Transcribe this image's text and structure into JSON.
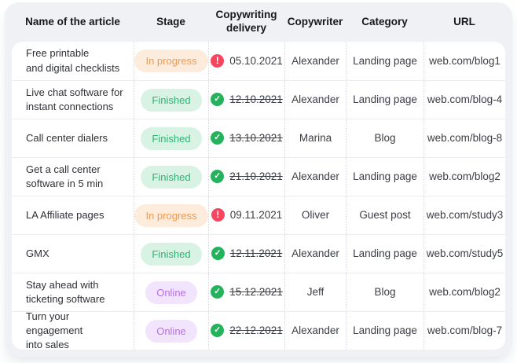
{
  "table": {
    "columns": [
      "Name of the article",
      "Stage",
      "Copywriting delivery",
      "Copywriter",
      "Category",
      "URL"
    ],
    "stage_colors": {
      "in-progress": {
        "bg": "#fdebdc",
        "text": "#f19a54"
      },
      "finished": {
        "bg": "#d8f3e3",
        "text": "#2db473"
      },
      "online": {
        "bg": "#f2e4fd",
        "text": "#b570e7"
      }
    },
    "status_colors": {
      "overdue_icon": "#f5455f",
      "done_icon": "#24b35c"
    },
    "icons": {
      "overdue_glyph": "!",
      "done_glyph": "✓"
    },
    "rows": [
      {
        "name": "Free printable\nand digital checklists",
        "stage": "In progress",
        "stage_type": "in-progress",
        "date": "05.10.2021",
        "status": "overdue",
        "copywriter": "Alexander",
        "category": "Landing page",
        "url": "web.com/blog1"
      },
      {
        "name": "Live chat software for\ninstant connections",
        "stage": "Finished",
        "stage_type": "finished",
        "date": "12.10.2021",
        "status": "done",
        "copywriter": "Alexander",
        "category": "Landing page",
        "url": "web.com/blog-4"
      },
      {
        "name": "Call center dialers",
        "stage": "Finished",
        "stage_type": "finished",
        "date": "13.10.2021",
        "status": "done",
        "copywriter": "Marina",
        "category": "Blog",
        "url": "web.com/blog-8"
      },
      {
        "name": "Get a call center\nsoftware in 5 min",
        "stage": "Finished",
        "stage_type": "finished",
        "date": "21.10.2021",
        "status": "done",
        "copywriter": "Alexander",
        "category": "Landing page",
        "url": "web.com/blog2"
      },
      {
        "name": "LA Affiliate pages",
        "stage": "In progress",
        "stage_type": "in-progress",
        "date": "09.11.2021",
        "status": "overdue",
        "copywriter": "Oliver",
        "category": "Guest post",
        "url": "web.com/study3"
      },
      {
        "name": "GMX",
        "stage": "Finished",
        "stage_type": "finished",
        "date": "12.11.2021",
        "status": "done",
        "copywriter": "Alexander",
        "category": "Landing page",
        "url": "web.com/study5"
      },
      {
        "name": "Stay ahead with\nticketing software",
        "stage": "Online",
        "stage_type": "online",
        "date": "15.12.2021",
        "status": "done",
        "copywriter": "Jeff",
        "category": "Blog",
        "url": "web.com/blog2"
      },
      {
        "name": "Turn your engagement\ninto sales",
        "stage": "Online",
        "stage_type": "online",
        "date": "22.12.2021",
        "status": "done",
        "copywriter": "Alexander",
        "category": "Landing page",
        "url": "web.com/blog-7"
      }
    ]
  }
}
